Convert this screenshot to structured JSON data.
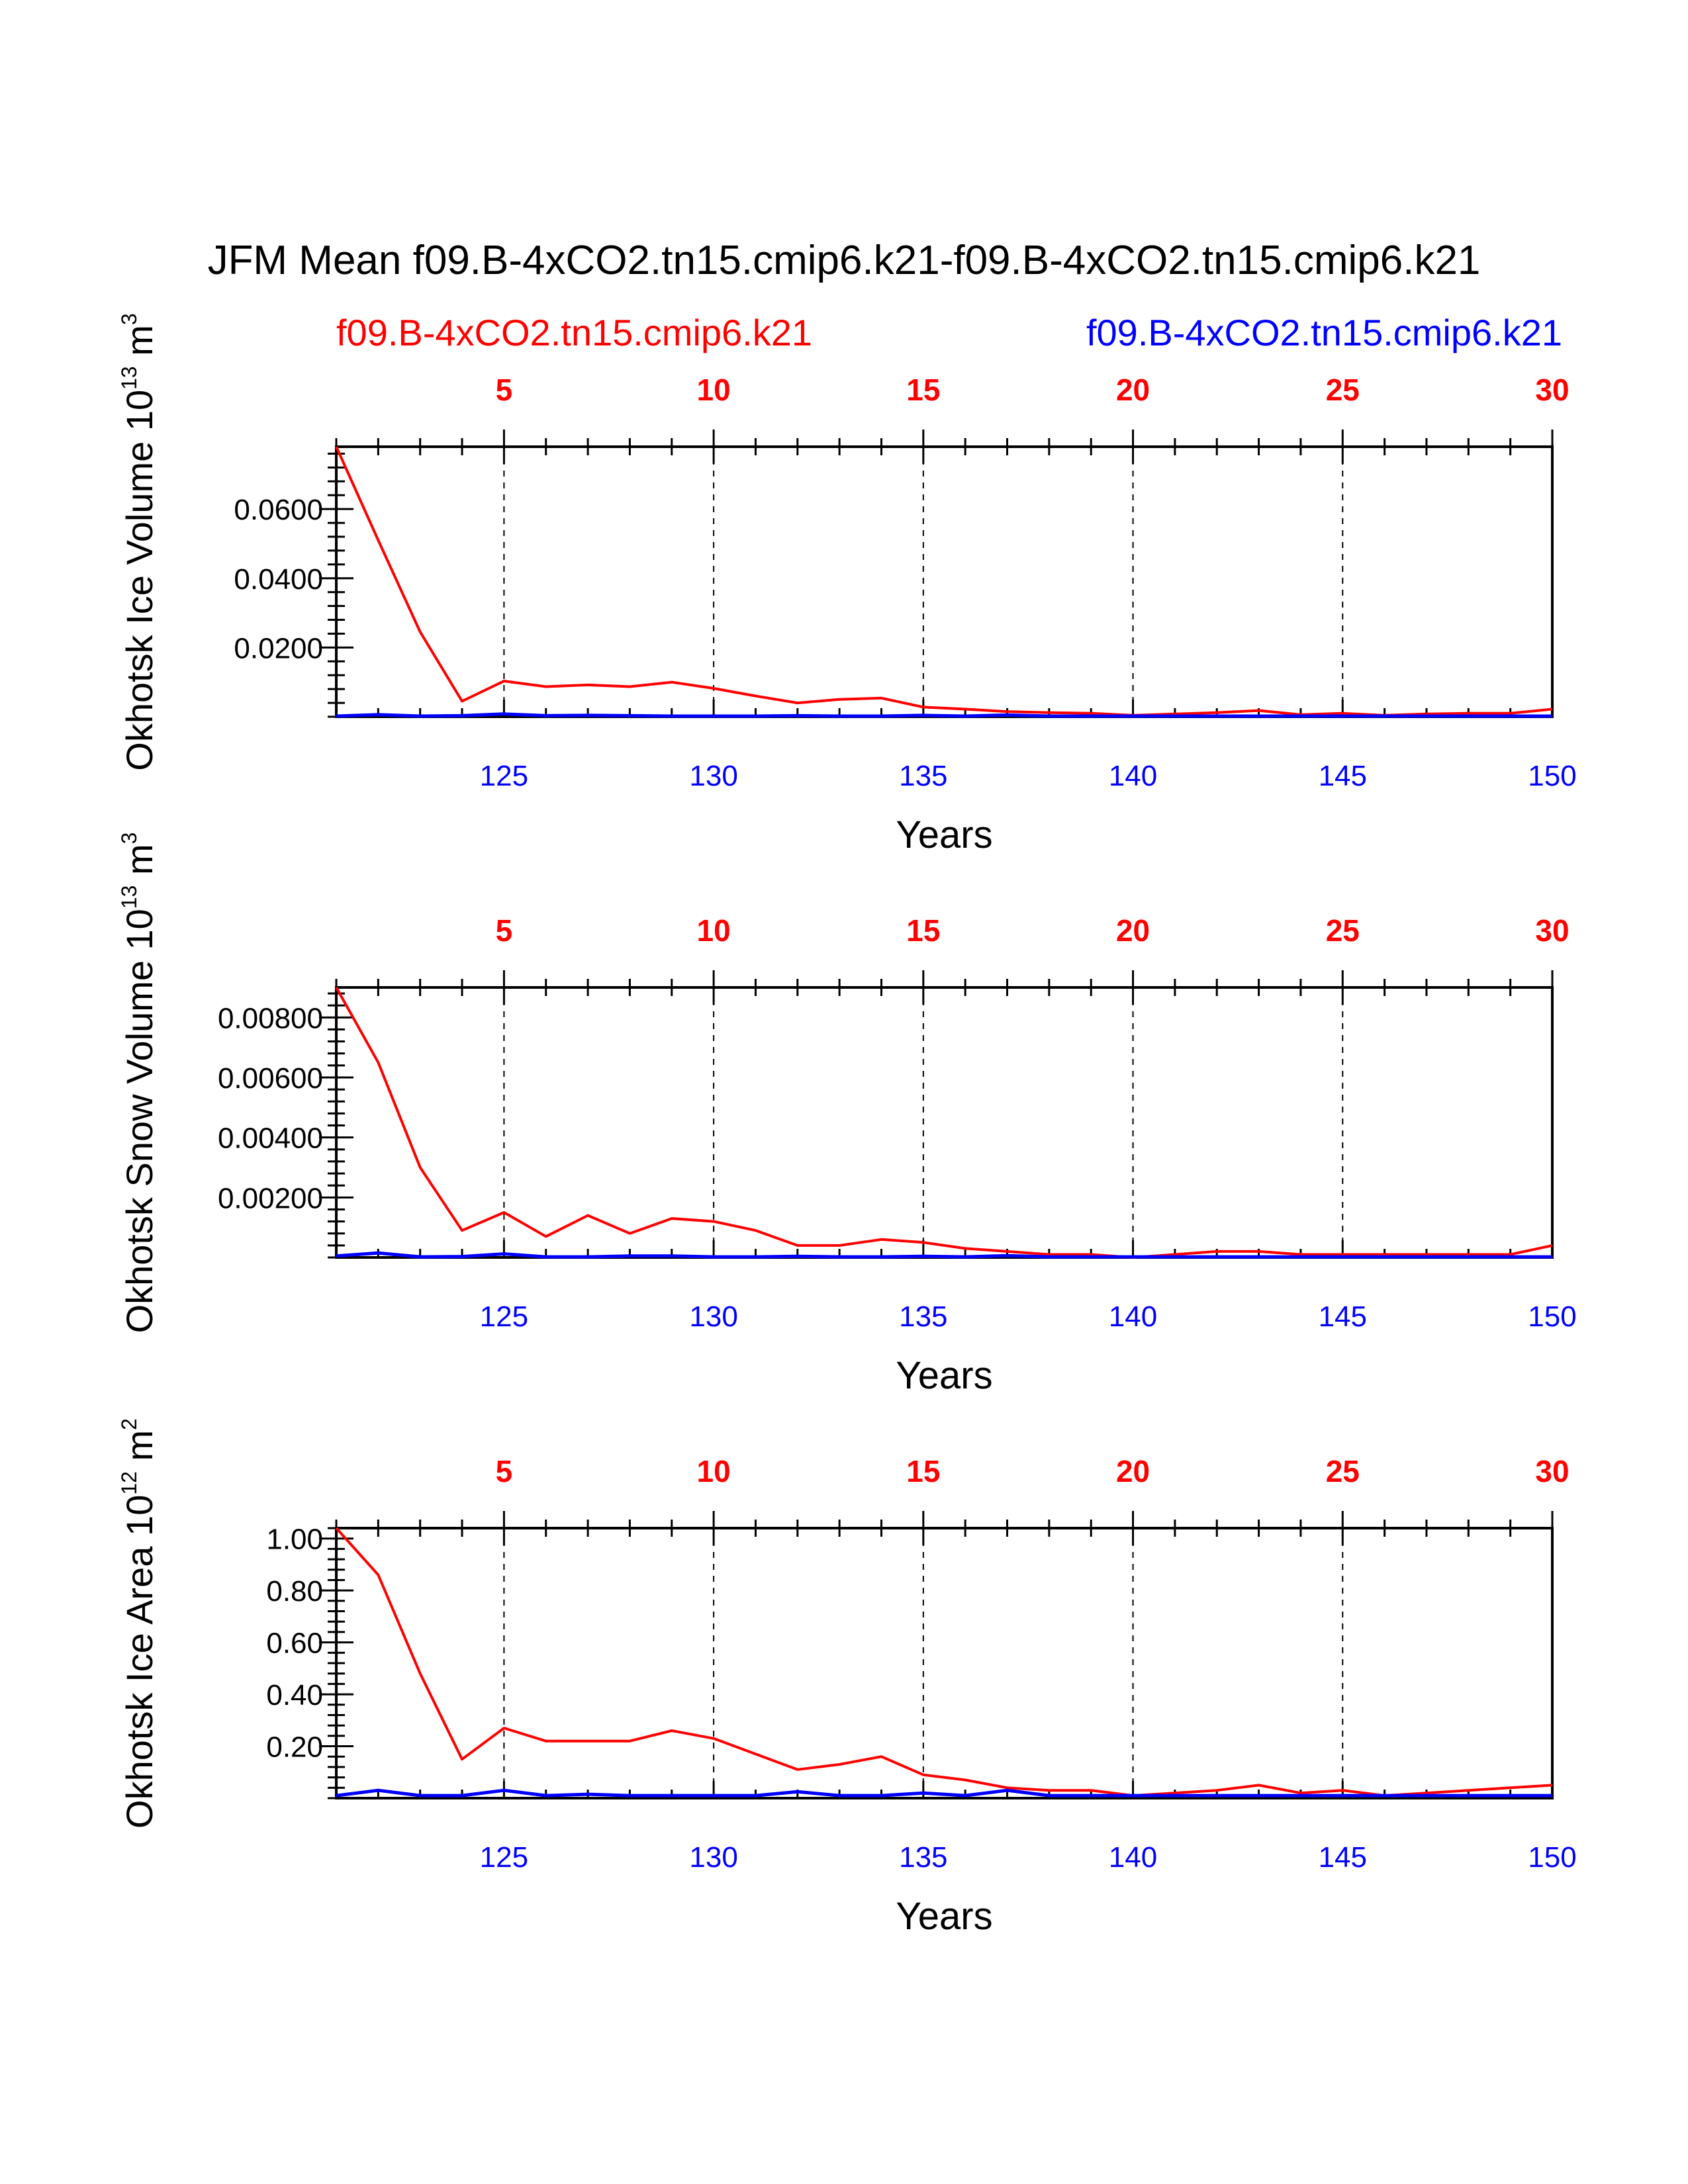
{
  "title": "JFM Mean f09.B-4xCO2.tn15.cmip6.k21-f09.B-4xCO2.tn15.cmip6.k21",
  "legend": {
    "left": {
      "label": "f09.B-4xCO2.tn15.cmip6.k21",
      "color": "#ff0000"
    },
    "right": {
      "label": "f09.B-4xCO2.tn15.cmip6.k21",
      "color": "#0000ff"
    }
  },
  "chart_data": [
    {
      "type": "line",
      "ylabel": "Okhotsk Ice Volume 10",
      "ylabel_exp": "13",
      "ylabel_unit": " m",
      "ylabel_unit_exp": "3",
      "xlabel": "Years",
      "x": [
        121,
        122,
        123,
        124,
        125,
        126,
        127,
        128,
        129,
        130,
        131,
        132,
        133,
        134,
        135,
        136,
        137,
        138,
        139,
        140,
        141,
        142,
        143,
        144,
        145,
        146,
        147,
        148,
        149,
        150
      ],
      "xlim": [
        121,
        150
      ],
      "ylim": [
        0,
        0.078
      ],
      "yticks": [
        0.02,
        0.04,
        0.06
      ],
      "ytick_labels": [
        "0.0200",
        "0.0400",
        "0.0600"
      ],
      "bottom_ticks": [
        125,
        130,
        135,
        140,
        145,
        150
      ],
      "bottom_tick_labels": [
        "125",
        "130",
        "135",
        "140",
        "145",
        "150"
      ],
      "top_ticks": [
        125,
        130,
        135,
        140,
        145,
        150
      ],
      "top_tick_labels": [
        "5",
        "10",
        "15",
        "20",
        "25",
        "30"
      ],
      "series": [
        {
          "name": "f09.B-4xCO2.tn15.cmip6.k21",
          "color": "#ff0000",
          "values": [
            0.078,
            0.051,
            0.0245,
            0.0045,
            0.0103,
            0.0087,
            0.0092,
            0.0087,
            0.01,
            0.0082,
            0.006,
            0.004,
            0.005,
            0.0054,
            0.0028,
            0.0022,
            0.0015,
            0.0012,
            0.001,
            0.0004,
            0.0008,
            0.0012,
            0.0018,
            0.0006,
            0.001,
            0.0004,
            0.0008,
            0.001,
            0.001,
            0.0022
          ]
        },
        {
          "name": "f09.B-4xCO2.tn15.cmip6.k21",
          "color": "#0000ff",
          "values": [
            0.0002,
            0.0006,
            0.0002,
            0.0003,
            0.0008,
            0.0003,
            0.0004,
            0.0003,
            0.0002,
            0.0002,
            0.0002,
            0.0003,
            0.0002,
            0.0002,
            0.0004,
            0.0002,
            0.0005,
            0.0002,
            0.0002,
            0.0002,
            0.0002,
            0.0002,
            0.0002,
            0.0002,
            0.0002,
            0.0002,
            0.0002,
            0.0002,
            0.0002,
            0.0002
          ]
        }
      ]
    },
    {
      "type": "line",
      "ylabel": "Okhotsk Snow Volume 10",
      "ylabel_exp": "13",
      "ylabel_unit": " m",
      "ylabel_unit_exp": "3",
      "xlabel": "Years",
      "x": [
        121,
        122,
        123,
        124,
        125,
        126,
        127,
        128,
        129,
        130,
        131,
        132,
        133,
        134,
        135,
        136,
        137,
        138,
        139,
        140,
        141,
        142,
        143,
        144,
        145,
        146,
        147,
        148,
        149,
        150
      ],
      "xlim": [
        121,
        150
      ],
      "ylim": [
        0,
        0.009
      ],
      "yticks": [
        0.002,
        0.004,
        0.006,
        0.008
      ],
      "ytick_labels": [
        "0.00200",
        "0.00400",
        "0.00600",
        "0.00800"
      ],
      "bottom_ticks": [
        125,
        130,
        135,
        140,
        145,
        150
      ],
      "bottom_tick_labels": [
        "125",
        "130",
        "135",
        "140",
        "145",
        "150"
      ],
      "top_ticks": [
        125,
        130,
        135,
        140,
        145,
        150
      ],
      "top_tick_labels": [
        "5",
        "10",
        "15",
        "20",
        "25",
        "30"
      ],
      "series": [
        {
          "name": "f09.B-4xCO2.tn15.cmip6.k21",
          "color": "#ff0000",
          "values": [
            0.009,
            0.0065,
            0.003,
            0.0009,
            0.0015,
            0.0007,
            0.0014,
            0.0008,
            0.0013,
            0.0012,
            0.0009,
            0.0004,
            0.0004,
            0.0006,
            0.0005,
            0.0003,
            0.0002,
            0.0001,
            0.0001,
            0.0,
            0.0001,
            0.0002,
            0.0002,
            0.0001,
            0.0001,
            0.0001,
            0.0001,
            0.0001,
            0.0001,
            0.0004
          ]
        },
        {
          "name": "f09.B-4xCO2.tn15.cmip6.k21",
          "color": "#0000ff",
          "values": [
            5e-05,
            0.00015,
            2e-05,
            3e-05,
            0.00012,
            2e-05,
            2e-05,
            5e-05,
            5e-05,
            2e-05,
            2e-05,
            4e-05,
            2e-05,
            2e-05,
            4e-05,
            2e-05,
            6e-05,
            2e-05,
            2e-05,
            2e-05,
            2e-05,
            2e-05,
            2e-05,
            2e-05,
            2e-05,
            2e-05,
            2e-05,
            2e-05,
            2e-05,
            2e-05
          ]
        }
      ]
    },
    {
      "type": "line",
      "ylabel": "Okhotsk Ice Area 10",
      "ylabel_exp": "12",
      "ylabel_unit": " m",
      "ylabel_unit_exp": "2",
      "xlabel": "Years",
      "x": [
        121,
        122,
        123,
        124,
        125,
        126,
        127,
        128,
        129,
        130,
        131,
        132,
        133,
        134,
        135,
        136,
        137,
        138,
        139,
        140,
        141,
        142,
        143,
        144,
        145,
        146,
        147,
        148,
        149,
        150
      ],
      "xlim": [
        121,
        150
      ],
      "ylim": [
        0,
        1.04
      ],
      "yticks": [
        0.2,
        0.4,
        0.6,
        0.8,
        1.0
      ],
      "ytick_labels": [
        "0.20",
        "0.40",
        "0.60",
        "0.80",
        "1.00"
      ],
      "bottom_ticks": [
        125,
        130,
        135,
        140,
        145,
        150
      ],
      "bottom_tick_labels": [
        "125",
        "130",
        "135",
        "140",
        "145",
        "150"
      ],
      "top_ticks": [
        125,
        130,
        135,
        140,
        145,
        150
      ],
      "top_tick_labels": [
        "5",
        "10",
        "15",
        "20",
        "25",
        "30"
      ],
      "series": [
        {
          "name": "f09.B-4xCO2.tn15.cmip6.k21",
          "color": "#ff0000",
          "values": [
            1.04,
            0.86,
            0.48,
            0.15,
            0.27,
            0.22,
            0.22,
            0.22,
            0.26,
            0.23,
            0.17,
            0.11,
            0.13,
            0.16,
            0.09,
            0.07,
            0.04,
            0.03,
            0.03,
            0.01,
            0.02,
            0.03,
            0.05,
            0.02,
            0.03,
            0.01,
            0.02,
            0.03,
            0.04,
            0.05
          ]
        },
        {
          "name": "f09.B-4xCO2.tn15.cmip6.k21",
          "color": "#0000ff",
          "values": [
            0.01,
            0.03,
            0.01,
            0.01,
            0.03,
            0.01,
            0.015,
            0.01,
            0.01,
            0.01,
            0.01,
            0.025,
            0.01,
            0.01,
            0.02,
            0.01,
            0.03,
            0.01,
            0.01,
            0.01,
            0.01,
            0.01,
            0.01,
            0.01,
            0.01,
            0.01,
            0.01,
            0.01,
            0.01,
            0.01
          ]
        }
      ]
    }
  ]
}
